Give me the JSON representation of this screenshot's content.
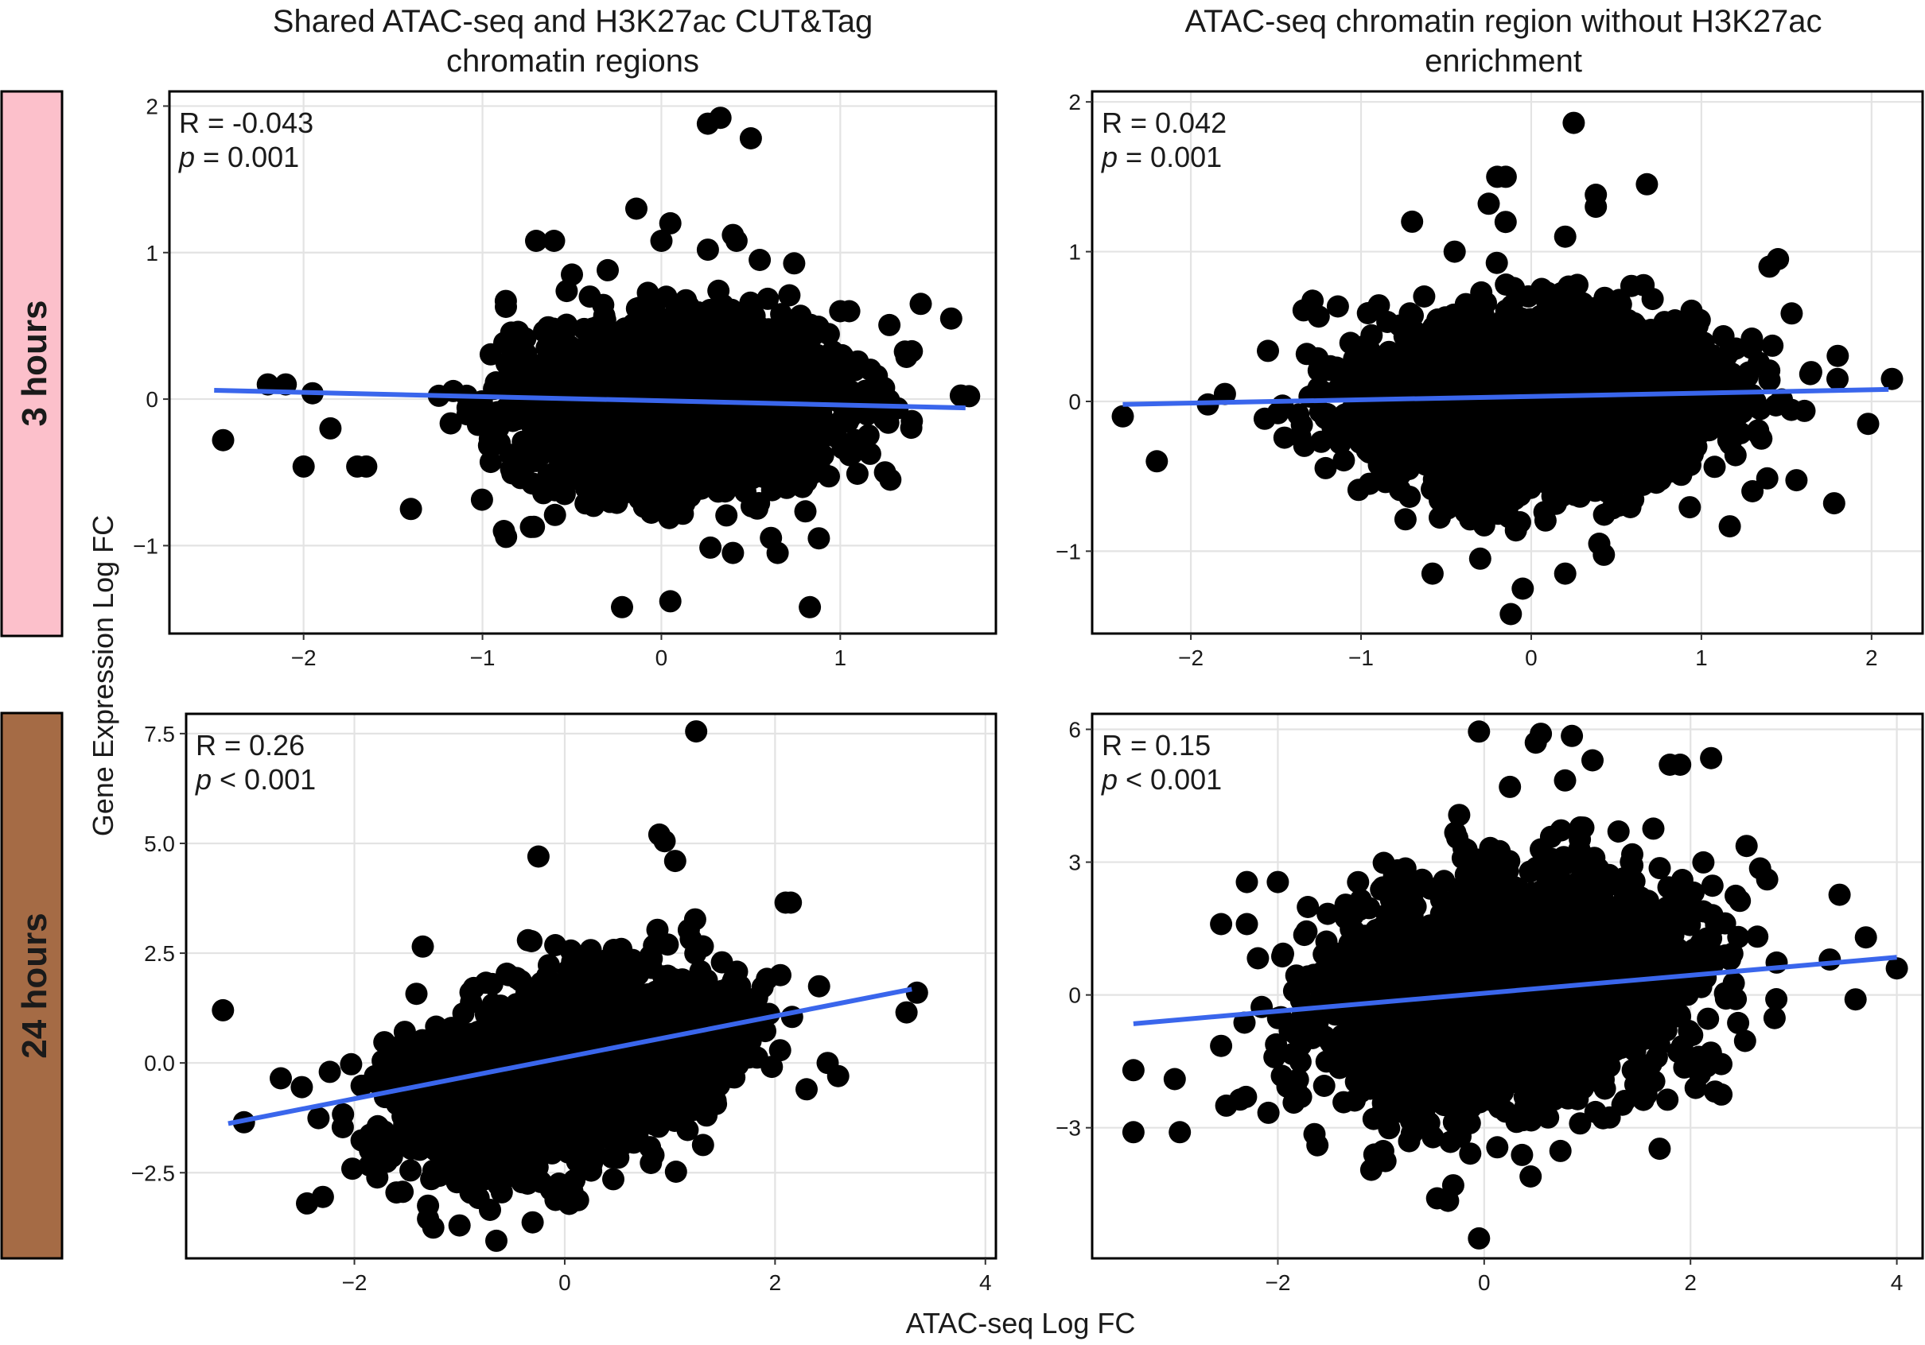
{
  "figure": {
    "y_axis_title": "Gene Expression Log FC",
    "x_axis_title": "ATAC-seq Log FC",
    "column_titles": [
      [
        "Shared ATAC-seq and H3K27ac CUT&Tag",
        "chromatin regions"
      ],
      [
        "ATAC-seq chromatin region without H3K27ac",
        "enrichment"
      ]
    ],
    "row_labels": [
      {
        "text": "3 hours",
        "color": "#fcc0cb"
      },
      {
        "text": "24 hours",
        "color": "#a56b45"
      }
    ],
    "point_color": "#000000",
    "fit_color": "#3a66ec",
    "grid": true
  },
  "chart_data": [
    {
      "type": "scatter",
      "row": "3 hours",
      "column": "Shared ATAC-seq and H3K27ac CUT&Tag chromatin regions",
      "xlim": [
        -2.75,
        1.87
      ],
      "ylim": [
        -1.6,
        2.1
      ],
      "xticks": [
        -2,
        -1,
        0,
        1
      ],
      "xtick_labels": [
        "−2",
        "−1",
        "0",
        "1"
      ],
      "yticks": [
        -1,
        0,
        1,
        2
      ],
      "ytick_labels": [
        "−1",
        "0",
        "1",
        "2"
      ],
      "stat_r": "R = -0.043",
      "stat_p_symbol": "p",
      "stat_p_value": " = 0.001",
      "cloud": {
        "center": [
          0.1,
          -0.05
        ],
        "spread": [
          0.42,
          0.27
        ],
        "n": 2600,
        "seed": 11
      },
      "outliers": [
        [
          0.26,
          1.88
        ],
        [
          0.33,
          1.92
        ],
        [
          0.5,
          1.78
        ],
        [
          -0.14,
          1.3
        ],
        [
          0.05,
          1.2
        ],
        [
          -0.7,
          1.08
        ],
        [
          -0.6,
          1.08
        ],
        [
          0.0,
          1.08
        ],
        [
          0.4,
          1.12
        ],
        [
          0.42,
          1.08
        ],
        [
          0.26,
          1.02
        ],
        [
          0.55,
          0.95
        ],
        [
          -0.5,
          0.85
        ],
        [
          -0.3,
          0.88
        ],
        [
          -0.4,
          0.7
        ],
        [
          1.45,
          0.65
        ],
        [
          1.62,
          0.55
        ],
        [
          1.0,
          0.6
        ],
        [
          1.05,
          0.6
        ],
        [
          -2.45,
          -0.28
        ],
        [
          -2.0,
          -0.46
        ],
        [
          -1.7,
          -0.46
        ],
        [
          -1.65,
          -0.46
        ],
        [
          -1.85,
          -0.2
        ],
        [
          -2.1,
          0.1
        ],
        [
          -2.2,
          0.1
        ],
        [
          -1.95,
          0.04
        ],
        [
          -1.4,
          -0.75
        ],
        [
          -0.88,
          -0.9
        ],
        [
          -0.22,
          -1.42
        ],
        [
          0.05,
          -1.38
        ],
        [
          0.83,
          -1.42
        ],
        [
          0.4,
          -1.05
        ],
        [
          0.65,
          -1.05
        ],
        [
          0.88,
          -0.95
        ],
        [
          1.72,
          0.02
        ],
        [
          1.4,
          -0.15
        ],
        [
          1.25,
          -0.5
        ],
        [
          1.28,
          -0.55
        ]
      ],
      "fit": {
        "x": [
          -2.5,
          1.7
        ],
        "y": [
          0.06,
          -0.06
        ]
      }
    },
    {
      "type": "scatter",
      "row": "3 hours",
      "column": "ATAC-seq chromatin region without H3K27ac enrichment",
      "xlim": [
        -2.58,
        2.3
      ],
      "ylim": [
        -1.55,
        2.07
      ],
      "xticks": [
        -2,
        -1,
        0,
        1,
        2
      ],
      "xtick_labels": [
        "−2",
        "−1",
        "0",
        "1",
        "2"
      ],
      "yticks": [
        -1,
        0,
        1,
        2
      ],
      "ytick_labels": [
        "−1",
        "0",
        "1",
        "2"
      ],
      "stat_r": "R = 0.042",
      "stat_p_symbol": "p",
      "stat_p_value": " = 0.001",
      "cloud": {
        "center": [
          0.02,
          0.0
        ],
        "spread": [
          0.5,
          0.27
        ],
        "n": 3000,
        "seed": 23
      },
      "outliers": [
        [
          0.25,
          1.86
        ],
        [
          -0.25,
          1.32
        ],
        [
          -0.2,
          1.5
        ],
        [
          -0.15,
          1.5
        ],
        [
          0.38,
          1.38
        ],
        [
          0.68,
          1.45
        ],
        [
          0.38,
          1.3
        ],
        [
          -0.7,
          1.2
        ],
        [
          0.2,
          1.1
        ],
        [
          -0.45,
          1.0
        ],
        [
          1.45,
          0.95
        ],
        [
          1.4,
          0.9
        ],
        [
          -2.4,
          -0.1
        ],
        [
          -2.2,
          -0.4
        ],
        [
          -1.9,
          -0.02
        ],
        [
          -1.8,
          0.05
        ],
        [
          1.8,
          0.15
        ],
        [
          2.12,
          0.15
        ],
        [
          1.98,
          -0.15
        ],
        [
          1.78,
          -0.68
        ],
        [
          -0.58,
          -1.15
        ],
        [
          -0.3,
          -1.05
        ],
        [
          -0.12,
          -1.42
        ],
        [
          -0.05,
          -1.25
        ],
        [
          0.2,
          -1.15
        ],
        [
          0.4,
          -0.95
        ],
        [
          -0.95,
          -0.55
        ],
        [
          1.3,
          -0.6
        ]
      ],
      "fit": {
        "x": [
          -2.4,
          2.1
        ],
        "y": [
          -0.02,
          0.08
        ]
      }
    },
    {
      "type": "scatter",
      "row": "24 hours",
      "column": "Shared ATAC-seq and H3K27ac CUT&Tag chromatin regions",
      "xlim": [
        -3.6,
        4.1
      ],
      "ylim": [
        -4.45,
        7.95
      ],
      "xticks": [
        -2,
        0,
        2,
        4
      ],
      "xtick_labels": [
        "−2",
        "0",
        "2",
        "4"
      ],
      "yticks": [
        -2.5,
        0.0,
        2.5,
        5.0,
        7.5
      ],
      "ytick_labels": [
        "−2.5",
        "0.0",
        "2.5",
        "5.0",
        "7.5"
      ],
      "stat_r": "R = 0.26",
      "stat_p_symbol": "p",
      "stat_p_value": " < 0.001",
      "cloud": {
        "center": [
          0.0,
          -0.2
        ],
        "spread": [
          0.72,
          1.05
        ],
        "n": 2600,
        "seed": 37,
        "corr": 0.42
      },
      "outliers": [
        [
          1.25,
          7.55
        ],
        [
          0.95,
          5.05
        ],
        [
          0.9,
          5.2
        ],
        [
          -0.25,
          4.7
        ],
        [
          1.05,
          4.6
        ],
        [
          2.1,
          3.65
        ],
        [
          2.15,
          3.65
        ],
        [
          -1.35,
          2.65
        ],
        [
          -3.25,
          1.2
        ],
        [
          -3.05,
          -1.35
        ],
        [
          -2.45,
          -3.2
        ],
        [
          -2.3,
          -3.05
        ],
        [
          -1.6,
          -2.95
        ],
        [
          -0.65,
          -4.05
        ],
        [
          -1.0,
          -3.7
        ],
        [
          -1.25,
          -3.75
        ],
        [
          -1.3,
          -3.55
        ],
        [
          -1.3,
          -3.25
        ],
        [
          3.25,
          1.15
        ],
        [
          3.35,
          1.6
        ],
        [
          2.6,
          -0.3
        ],
        [
          2.5,
          -0.0
        ],
        [
          2.3,
          -0.6
        ],
        [
          2.05,
          2.0
        ],
        [
          -2.7,
          -0.35
        ],
        [
          -2.5,
          -0.55
        ]
      ],
      "fit": {
        "x": [
          -3.2,
          3.3
        ],
        "y": [
          -1.38,
          1.68
        ]
      }
    },
    {
      "type": "scatter",
      "row": "24 hours",
      "column": "ATAC-seq chromatin region without H3K27ac enrichment",
      "xlim": [
        -3.8,
        4.25
      ],
      "ylim": [
        -5.95,
        6.35
      ],
      "xticks": [
        -2,
        0,
        2,
        4
      ],
      "xtick_labels": [
        "−2",
        "0",
        "2",
        "4"
      ],
      "yticks": [
        -3,
        0,
        3,
        6
      ],
      "ytick_labels": [
        "−3",
        "0",
        "3",
        "6"
      ],
      "stat_r": "R = 0.15",
      "stat_p_symbol": "p",
      "stat_p_value": " < 0.001",
      "cloud": {
        "center": [
          0.2,
          0.1
        ],
        "spread": [
          0.85,
          1.25
        ],
        "n": 3000,
        "seed": 51,
        "corr": 0.2
      },
      "outliers": [
        [
          -0.05,
          5.95
        ],
        [
          0.55,
          5.9
        ],
        [
          0.85,
          5.85
        ],
        [
          0.5,
          5.7
        ],
        [
          1.05,
          5.3
        ],
        [
          1.8,
          5.2
        ],
        [
          1.9,
          5.2
        ],
        [
          2.2,
          5.35
        ],
        [
          0.25,
          4.7
        ],
        [
          -3.4,
          -1.7
        ],
        [
          -3.4,
          -3.1
        ],
        [
          -3.0,
          -1.9
        ],
        [
          -2.95,
          -3.1
        ],
        [
          -2.5,
          -2.5
        ],
        [
          -2.55,
          -1.15
        ],
        [
          -2.3,
          2.55
        ],
        [
          -2.0,
          2.55
        ],
        [
          -2.55,
          1.6
        ],
        [
          -2.3,
          1.6
        ],
        [
          -0.05,
          -5.5
        ],
        [
          -0.3,
          -4.3
        ],
        [
          -0.35,
          -4.65
        ],
        [
          0.45,
          -4.1
        ],
        [
          3.7,
          1.3
        ],
        [
          4.0,
          0.6
        ],
        [
          3.6,
          -0.1
        ],
        [
          3.35,
          0.8
        ],
        [
          2.3,
          -2.25
        ],
        [
          2.05,
          -2.1
        ]
      ],
      "fit": {
        "x": [
          -3.4,
          4.0
        ],
        "y": [
          -0.65,
          0.85
        ]
      }
    }
  ]
}
